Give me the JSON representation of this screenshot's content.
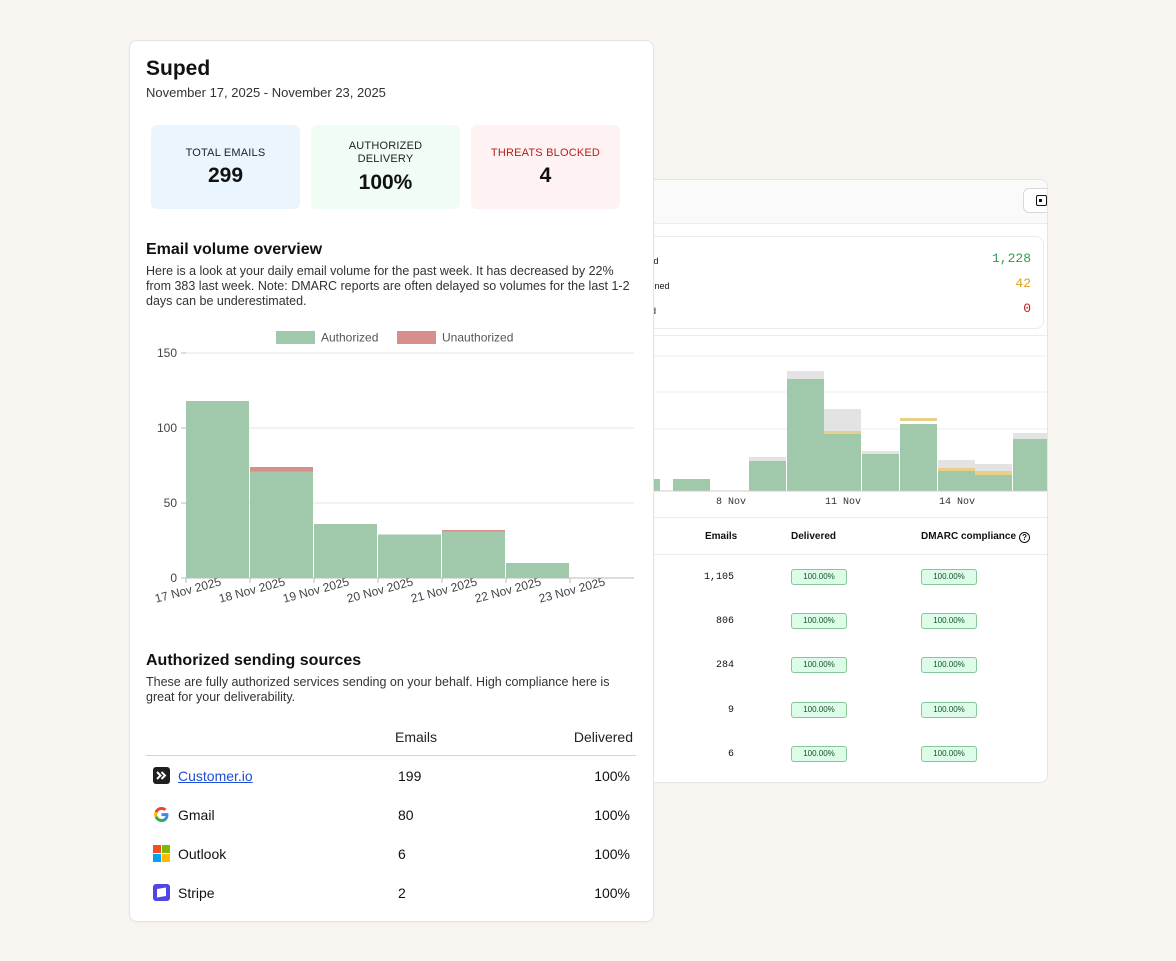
{
  "back_card": {
    "stats": [
      {
        "label": "livered",
        "value": "1,228",
        "color": "#2f9e44"
      },
      {
        "label": "arantined",
        "value": "42",
        "color": "#e0a018"
      },
      {
        "label": "jected",
        "value": "0",
        "color": "#b91c1c"
      }
    ],
    "chart_ticks": [
      "8 Nov",
      "11 Nov",
      "14 Nov"
    ],
    "table_headers": {
      "emails": "Emails",
      "delivered": "Delivered",
      "dmarc": "DMARC compliance"
    },
    "rows": [
      {
        "emails": "1,105",
        "delivered": "100.00%",
        "dmarc": "100.00%"
      },
      {
        "emails": "806",
        "delivered": "100.00%",
        "dmarc": "100.00%"
      },
      {
        "emails": "284",
        "delivered": "100.00%",
        "dmarc": "100.00%"
      },
      {
        "emails": "9",
        "delivered": "100.00%",
        "dmarc": "100.00%"
      },
      {
        "emails": "6",
        "delivered": "100.00%",
        "dmarc": "100.00%"
      }
    ]
  },
  "report": {
    "title": "Suped",
    "date_range": "November 17, 2025 - November 23, 2025",
    "kpis": [
      {
        "label": "TOTAL EMAILS",
        "value": "299",
        "bg": "#eaf5fd",
        "color": "#222"
      },
      {
        "label": "AUTHORIZED DELIVERY",
        "value": "100%",
        "bg": "#f0fdf4",
        "color": "#222"
      },
      {
        "label": "THREATS BLOCKED",
        "value": "4",
        "bg": "#fef3f2",
        "color": "#b91c1c"
      }
    ],
    "volume_title": "Email volume overview",
    "volume_desc": "Here is a look at your daily email volume for the past week. It has decreased by 22% from 383 last week. Note: DMARC reports are often delayed so volumes for the last 1-2 days can be underestimated.",
    "sources_title": "Authorized sending sources",
    "sources_desc": "These are fully authorized services sending on your behalf. High compliance here is great for your deliverability.",
    "sources_headers": {
      "emails": "Emails",
      "delivered": "Delivered"
    },
    "sources": [
      {
        "name": "Customer.io",
        "emails": "199",
        "delivered": "100%",
        "icon": "customerio-icon",
        "link": true
      },
      {
        "name": "Gmail",
        "emails": "80",
        "delivered": "100%",
        "icon": "google-icon",
        "link": false
      },
      {
        "name": "Outlook",
        "emails": "6",
        "delivered": "100%",
        "icon": "microsoft-icon",
        "link": false
      },
      {
        "name": "Stripe",
        "emails": "2",
        "delivered": "100%",
        "icon": "stripe-icon",
        "link": false
      }
    ]
  },
  "chart_data": {
    "type": "bar",
    "stacked": true,
    "categories": [
      "17 Nov 2025",
      "18 Nov 2025",
      "19 Nov 2025",
      "20 Nov 2025",
      "21 Nov 2025",
      "22 Nov 2025",
      "23 Nov 2025"
    ],
    "series": [
      {
        "name": "Authorized",
        "values": [
          118,
          71,
          36,
          29,
          31,
          10,
          0
        ],
        "color": "#9fc9aa"
      },
      {
        "name": "Unauthorized",
        "values": [
          0,
          3,
          0,
          0,
          1,
          0,
          0
        ],
        "color": "#d98e8e"
      }
    ],
    "yticks": [
      0,
      50,
      100,
      150
    ],
    "ylim": [
      0,
      150
    ],
    "grid": true,
    "legend": "top-center"
  }
}
